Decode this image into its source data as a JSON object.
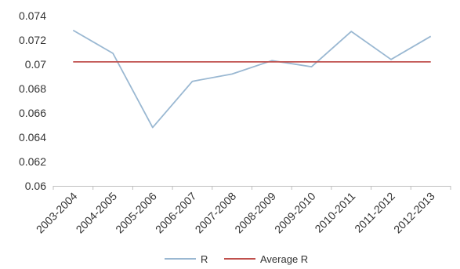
{
  "chart_data": {
    "type": "line",
    "categories": [
      "2003-2004",
      "2004-2005",
      "2005-2006",
      "2006-2007",
      "2007-2008",
      "2008-2009",
      "2009-2010",
      "2010-2011",
      "2011-2012",
      "2012-2013"
    ],
    "series": [
      {
        "name": "R",
        "color": "#9ab8d2",
        "values": [
          0.0728,
          0.0709,
          0.0648,
          0.0686,
          0.0692,
          0.0703,
          0.0698,
          0.0727,
          0.0704,
          0.0723
        ]
      },
      {
        "name": "Average R",
        "color": "#c0504d",
        "values": [
          0.0702,
          0.0702,
          0.0702,
          0.0702,
          0.0702,
          0.0702,
          0.0702,
          0.0702,
          0.0702,
          0.0702
        ]
      }
    ],
    "y_ticks": [
      "0.06",
      "0.062",
      "0.064",
      "0.066",
      "0.068",
      "0.07",
      "0.072",
      "0.074"
    ],
    "ylim": [
      0.06,
      0.074
    ],
    "title": "",
    "xlabel": "",
    "ylabel": "",
    "grid": false,
    "legend_position": "bottom"
  }
}
